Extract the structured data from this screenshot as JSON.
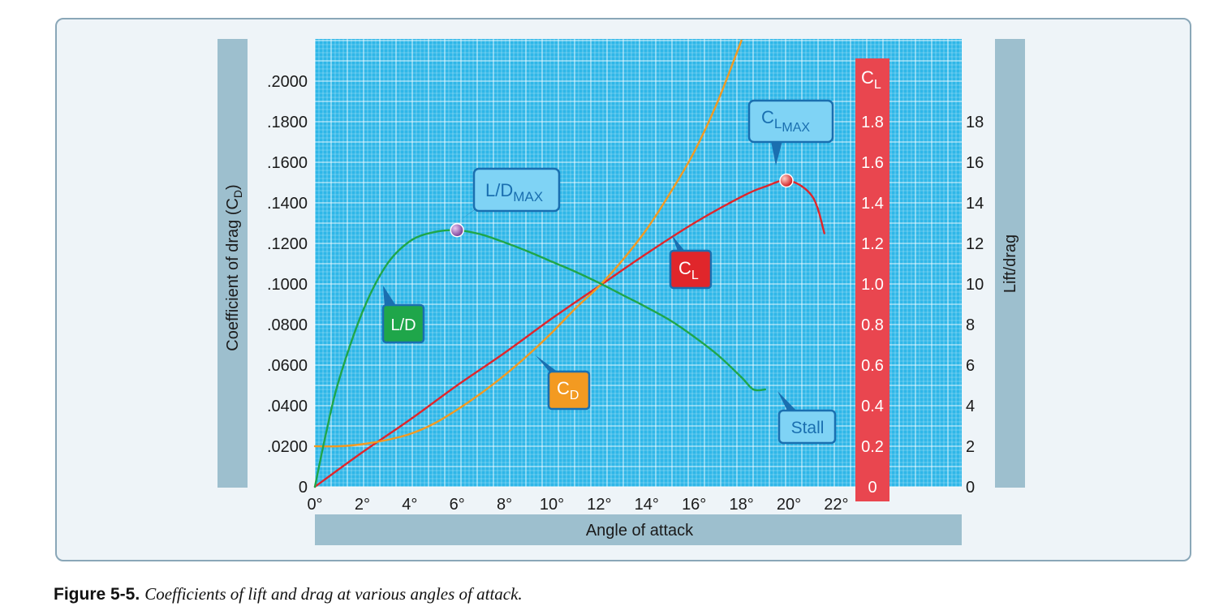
{
  "chart_data": {
    "type": "line",
    "xlabel": "Angle of attack",
    "ylabel_left": "Coefficient of drag (C",
    "ylabel_left_sub": "D",
    "ylabel_left_close": ")",
    "ylabel_right": "Lift/drag",
    "cl_axis_label": "C",
    "cl_axis_label_sub": "L",
    "xlim": [
      0,
      24
    ],
    "x_ticks": [
      "0°",
      "2°",
      "4°",
      "6°",
      "8°",
      "10°",
      "12°",
      "14°",
      "16°",
      "18°",
      "20°",
      "22°"
    ],
    "left_axis": {
      "ylim": [
        0,
        0.22
      ],
      "ticks": [
        "0",
        ".0200",
        ".0400",
        ".0600",
        ".0800",
        ".1000",
        ".1200",
        ".1400",
        ".1600",
        ".1800",
        ".2000"
      ]
    },
    "cl_axis": {
      "ylim": [
        0,
        2.2
      ],
      "ticks": [
        "0",
        "0.2",
        "0.4",
        "0.6",
        "0.8",
        "1.0",
        "1.2",
        "1.4",
        "1.6",
        "1.8"
      ]
    },
    "right_axis": {
      "ylim": [
        0,
        22
      ],
      "ticks": [
        "0",
        "2",
        "4",
        "6",
        "8",
        "10",
        "12",
        "14",
        "16",
        "18"
      ]
    },
    "grid": true,
    "series": [
      {
        "name": "C",
        "name_sub": "L",
        "axis": "cl",
        "color": "#e0262b",
        "x": [
          0,
          2,
          4,
          6,
          8,
          10,
          12,
          14,
          16,
          18,
          19,
          20,
          21,
          21.5
        ],
        "y": [
          0,
          0.17,
          0.33,
          0.5,
          0.66,
          0.83,
          0.99,
          1.15,
          1.3,
          1.43,
          1.48,
          1.51,
          1.43,
          1.25
        ]
      },
      {
        "name": "C",
        "name_sub": "D",
        "axis": "left",
        "color": "#f39a21",
        "x": [
          0,
          1,
          2,
          3,
          4,
          5,
          6,
          7,
          8,
          9,
          10,
          11,
          12,
          13,
          14,
          15,
          16,
          17,
          18
        ],
        "y": [
          0.02,
          0.02,
          0.021,
          0.023,
          0.026,
          0.031,
          0.038,
          0.046,
          0.055,
          0.065,
          0.076,
          0.088,
          0.099,
          0.112,
          0.127,
          0.145,
          0.165,
          0.19,
          0.22
        ]
      },
      {
        "name": "L/D",
        "axis": "right",
        "color": "#1fa64a",
        "x": [
          0,
          0.5,
          1,
          2,
          3,
          4,
          5,
          6,
          7,
          8,
          9,
          10,
          11,
          12,
          13,
          14,
          15,
          16,
          17,
          18,
          18.5,
          19
        ],
        "y": [
          0,
          2.8,
          5.2,
          8.6,
          10.9,
          12.1,
          12.55,
          12.65,
          12.45,
          12.05,
          11.6,
          11.1,
          10.6,
          10.05,
          9.45,
          8.85,
          8.2,
          7.4,
          6.5,
          5.4,
          4.8,
          4.8
        ]
      }
    ],
    "annotations": {
      "ld_max": {
        "text": "L/D",
        "sub": "MAX",
        "x": 6,
        "y": 12.65,
        "axis": "right",
        "color": "#8a4fa3"
      },
      "cl_max": {
        "text": "C",
        "sub": "L",
        "sub2": "MAX",
        "x": 20,
        "y": 1.51,
        "axis": "cl",
        "color": "#e0262b"
      },
      "stall": {
        "text": "Stall"
      }
    },
    "tag_colors": {
      "callout_fill": "#7fd3f5",
      "callout_border": "#1a6fb0",
      "cl_fill": "#e0262b",
      "cd_fill": "#f39a21",
      "ld_fill": "#1fa64a",
      "plot_bg": "#2fb7e8",
      "grid": "#ffffff",
      "band": "#9dbfce",
      "cl_band": "#e9464f"
    }
  },
  "caption": {
    "figure": "Figure 5-5.",
    "text": "Coefficients of lift and drag at various angles of attack."
  }
}
